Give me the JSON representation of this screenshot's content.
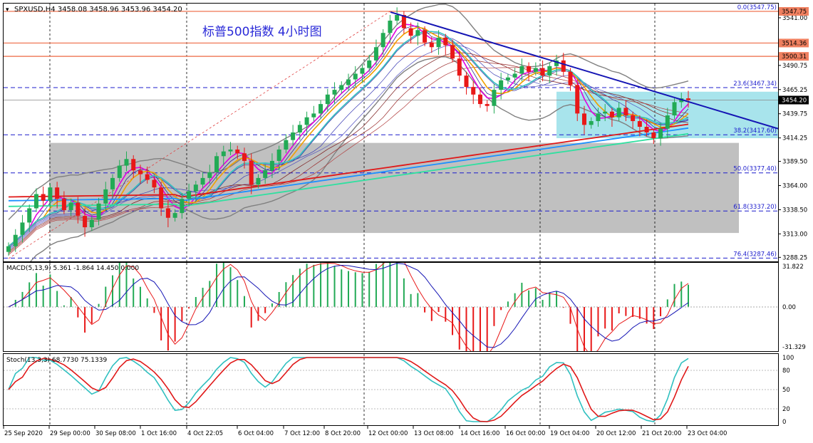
{
  "window": {
    "symbol_line": "SPXUSD,H4  3458.08 3458.96 3453.96 3454.20"
  },
  "chart_data": {
    "type": "candlestick",
    "title": "标普500指数  4小时图",
    "price_ticks": [
      "3541.00",
      "3516.10",
      "3490.75",
      "3465.25",
      "3439.75",
      "3414.25",
      "3389.50",
      "3364.00",
      "3338.50",
      "3313.00",
      "3288.25"
    ],
    "price_range": [
      3284,
      3556
    ],
    "last_price": "3454.20",
    "h_lines": [
      {
        "label": "3547.75",
        "value": 3547.75,
        "color": "#f08060",
        "box": true
      },
      {
        "label": "3514.36",
        "value": 3514.36,
        "color": "#f08060",
        "box": true
      },
      {
        "label": "3500.31",
        "value": 3500.31,
        "color": "#f08060",
        "box": true
      }
    ],
    "fib_levels": [
      {
        "label": "0.0(3547.75)",
        "value": 3547.75
      },
      {
        "label": "23.6(3467.34)",
        "value": 3467.34
      },
      {
        "label": "38.2(3417.60)",
        "value": 3417.6
      },
      {
        "label": "50.0(3377.40)",
        "value": 3377.4
      },
      {
        "label": "61.8(3337.20)",
        "value": 3337.2
      },
      {
        "label": "76.4(3287.46)",
        "value": 3287.46
      }
    ],
    "time_labels": [
      "25 Sep 2020",
      "29 Sep 00:00",
      "30 Sep 08:00",
      "1 Oct 16:00",
      "4 Oct 22:05",
      "6 Oct 04:00",
      "7 Oct 12:00",
      "8 Oct 20:00",
      "12 Oct 00:00",
      "13 Oct 08:00",
      "14 Oct 16:00",
      "16 Oct 00:00",
      "19 Oct 04:00",
      "20 Oct 12:00",
      "21 Oct 20:00",
      "23 Oct 04:00"
    ],
    "closes": [
      3300,
      3312,
      3325,
      3340,
      3355,
      3348,
      3362,
      3350,
      3338,
      3346,
      3332,
      3320,
      3328,
      3345,
      3360,
      3372,
      3385,
      3392,
      3380,
      3376,
      3370,
      3362,
      3340,
      3330,
      3335,
      3350,
      3358,
      3365,
      3372,
      3378,
      3395,
      3400,
      3402,
      3398,
      3390,
      3365,
      3372,
      3380,
      3390,
      3402,
      3412,
      3420,
      3428,
      3436,
      3440,
      3450,
      3460,
      3465,
      3470,
      3476,
      3482,
      3488,
      3496,
      3510,
      3525,
      3538,
      3544,
      3530,
      3522,
      3528,
      3515,
      3510,
      3520,
      3512,
      3498,
      3480,
      3468,
      3460,
      3450,
      3448,
      3465,
      3475,
      3478,
      3482,
      3490,
      3484,
      3488,
      3480,
      3490,
      3496,
      3484,
      3470,
      3440,
      3428,
      3432,
      3440,
      3442,
      3436,
      3446,
      3438,
      3432,
      3426,
      3420,
      3414,
      3424,
      3438,
      3452,
      3456,
      3454.2
    ],
    "macd": {
      "label": "MACD(5,13,9) 5.361 -1.864 14.450 0.000",
      "ticks": [
        "31.822",
        "0.00",
        "-31.329"
      ]
    },
    "stoch": {
      "label": "Stoch(13,3,3) 68.7730 75.1339",
      "ticks": [
        "100",
        "80",
        "50",
        "20",
        "0"
      ]
    }
  }
}
